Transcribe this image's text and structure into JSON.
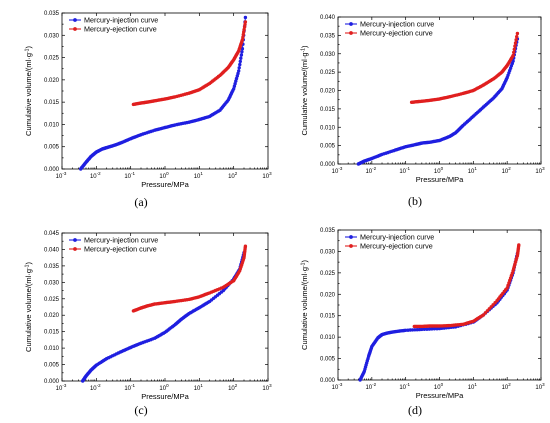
{
  "chart_data": [
    {
      "panel_label": "(a)",
      "type": "line",
      "xscale": "log",
      "xlim": [
        0.001,
        1000
      ],
      "ylim": [
        0,
        0.035
      ],
      "yticks": [
        "0.000",
        "0.005",
        "0.010",
        "0.015",
        "0.020",
        "0.025",
        "0.030",
        "0.035"
      ],
      "xticks": [
        "10",
        "10",
        "10",
        "10",
        "10",
        "10",
        "10"
      ],
      "xtick_exponents": [
        "-3",
        "-2",
        "-1",
        "0",
        "1",
        "2",
        "3"
      ],
      "xlabel": "Pressure/MPa",
      "ylabel": "Cumulative volume/(ml·g",
      "ylabel_sup": "-1",
      "ylabel_close": ")",
      "legend": "top-left",
      "series": [
        {
          "name": "Mercury-injection curve",
          "color": "#1f1fe0",
          "x": [
            0.0035,
            0.005,
            0.007,
            0.01,
            0.015,
            0.02,
            0.03,
            0.05,
            0.1,
            0.2,
            0.5,
            1,
            2,
            5,
            10,
            20,
            40,
            70,
            100,
            140,
            180,
            220
          ],
          "y": [
            0,
            0.0015,
            0.0028,
            0.0038,
            0.0045,
            0.0048,
            0.0052,
            0.0058,
            0.0068,
            0.0077,
            0.0087,
            0.0093,
            0.0099,
            0.0105,
            0.0111,
            0.0118,
            0.0132,
            0.0155,
            0.018,
            0.022,
            0.027,
            0.034
          ]
        },
        {
          "name": "Mercury-ejection curve",
          "color": "#e01f1f",
          "x": [
            0.12,
            0.2,
            0.3,
            0.5,
            1,
            2,
            5,
            10,
            20,
            40,
            70,
            100,
            140,
            180,
            220
          ],
          "y": [
            0.0145,
            0.0148,
            0.015,
            0.0153,
            0.0157,
            0.0162,
            0.017,
            0.0178,
            0.0192,
            0.021,
            0.0228,
            0.0245,
            0.0265,
            0.029,
            0.033
          ]
        }
      ]
    },
    {
      "panel_label": "(b)",
      "type": "line",
      "xscale": "log",
      "xlim": [
        0.001,
        1000
      ],
      "ylim": [
        0,
        0.04
      ],
      "yticks": [
        "0.000",
        "0.005",
        "0.010",
        "0.015",
        "0.020",
        "0.025",
        "0.030",
        "0.035",
        "0.040"
      ],
      "xticks": [
        "10",
        "10",
        "10",
        "10",
        "10",
        "10",
        "10"
      ],
      "xtick_exponents": [
        "-3",
        "-2",
        "-1",
        "0",
        "1",
        "2",
        "3"
      ],
      "xlabel": "Pressure/MPa",
      "ylabel": "Cumulative volume/(ml·g",
      "ylabel_sup": "-1",
      "ylabel_close": ")",
      "legend": "top-left",
      "series": [
        {
          "name": "Mercury-injection curve",
          "color": "#1f1fe0",
          "x": [
            0.004,
            0.006,
            0.01,
            0.02,
            0.05,
            0.1,
            0.2,
            0.3,
            0.5,
            1,
            2,
            3,
            5,
            10,
            20,
            40,
            70,
            100,
            150,
            200
          ],
          "y": [
            0,
            0.0008,
            0.0015,
            0.0026,
            0.0038,
            0.0047,
            0.0053,
            0.0057,
            0.0059,
            0.0064,
            0.0075,
            0.0085,
            0.0105,
            0.013,
            0.0155,
            0.018,
            0.0205,
            0.0235,
            0.028,
            0.034
          ]
        },
        {
          "name": "Mercury-ejection curve",
          "color": "#e01f1f",
          "x": [
            0.15,
            0.25,
            0.5,
            1,
            2,
            5,
            10,
            20,
            40,
            70,
            100,
            150,
            200
          ],
          "y": [
            0.0168,
            0.017,
            0.0173,
            0.0177,
            0.0183,
            0.0192,
            0.02,
            0.0215,
            0.0232,
            0.025,
            0.0268,
            0.0295,
            0.0355
          ]
        }
      ]
    },
    {
      "panel_label": "(c)",
      "type": "line",
      "xscale": "log",
      "xlim": [
        0.001,
        1000
      ],
      "ylim": [
        0,
        0.045
      ],
      "yticks": [
        "0.000",
        "0.005",
        "0.010",
        "0.015",
        "0.020",
        "0.025",
        "0.030",
        "0.035",
        "0.040",
        "0.045"
      ],
      "xticks": [
        "10",
        "10",
        "10",
        "10",
        "10",
        "10",
        "10"
      ],
      "xtick_exponents": [
        "-3",
        "-2",
        "-1",
        "0",
        "1",
        "2",
        "3"
      ],
      "xlabel": "Pressure/MPa",
      "ylabel": "Cumulative volume/(ml·g",
      "ylabel_sup": "-1",
      "ylabel_close": ")",
      "legend": "top-left",
      "series": [
        {
          "name": "Mercury-injection curve",
          "color": "#1f1fe0",
          "x": [
            0.004,
            0.005,
            0.007,
            0.01,
            0.02,
            0.05,
            0.1,
            0.2,
            0.5,
            1,
            2,
            3,
            5,
            10,
            20,
            50,
            100,
            150,
            200
          ],
          "y": [
            0,
            0.0015,
            0.0033,
            0.0048,
            0.0068,
            0.0088,
            0.0102,
            0.0115,
            0.013,
            0.0148,
            0.0172,
            0.0188,
            0.0205,
            0.0223,
            0.0242,
            0.0275,
            0.031,
            0.034,
            0.039
          ]
        },
        {
          "name": "Mercury-ejection curve",
          "color": "#e01f1f",
          "x": [
            0.12,
            0.2,
            0.3,
            0.5,
            1,
            2,
            5,
            10,
            20,
            50,
            100,
            150,
            200,
            220
          ],
          "y": [
            0.0213,
            0.0222,
            0.0228,
            0.0234,
            0.0238,
            0.0242,
            0.0248,
            0.0256,
            0.0268,
            0.0285,
            0.0305,
            0.0335,
            0.0375,
            0.041
          ]
        }
      ]
    },
    {
      "panel_label": "(d)",
      "type": "line",
      "xscale": "log",
      "xlim": [
        0.001,
        1000
      ],
      "ylim": [
        0,
        0.035
      ],
      "yticks": [
        "0.000",
        "0.005",
        "0.010",
        "0.015",
        "0.020",
        "0.025",
        "0.030",
        "0.035"
      ],
      "xticks": [
        "10",
        "10",
        "10",
        "10",
        "10",
        "10",
        "10"
      ],
      "xtick_exponents": [
        "-3",
        "-2",
        "-1",
        "0",
        "1",
        "2",
        "3"
      ],
      "xlabel": "Pressure/MPa",
      "ylabel": "Cumulative volume/(ml·g",
      "ylabel_sup": "-1",
      "ylabel_close": ")",
      "legend": "top-left",
      "series": [
        {
          "name": "Mercury-injection curve",
          "color": "#1f1fe0",
          "x": [
            0.0045,
            0.006,
            0.008,
            0.01,
            0.015,
            0.02,
            0.03,
            0.05,
            0.1,
            0.3,
            1,
            3,
            10,
            20,
            50,
            100,
            150,
            200
          ],
          "y": [
            0,
            0.002,
            0.0055,
            0.0078,
            0.0098,
            0.0106,
            0.011,
            0.0113,
            0.0116,
            0.0118,
            0.012,
            0.0124,
            0.0135,
            0.0152,
            0.018,
            0.021,
            0.025,
            0.0295
          ]
        },
        {
          "name": "Mercury-ejection curve",
          "color": "#e01f1f",
          "x": [
            0.18,
            0.3,
            0.5,
            1,
            2,
            5,
            10,
            20,
            50,
            100,
            150,
            200,
            220
          ],
          "y": [
            0.0125,
            0.0125,
            0.0126,
            0.0126,
            0.0127,
            0.013,
            0.0137,
            0.0152,
            0.0185,
            0.0215,
            0.0255,
            0.029,
            0.0315
          ]
        }
      ]
    }
  ]
}
